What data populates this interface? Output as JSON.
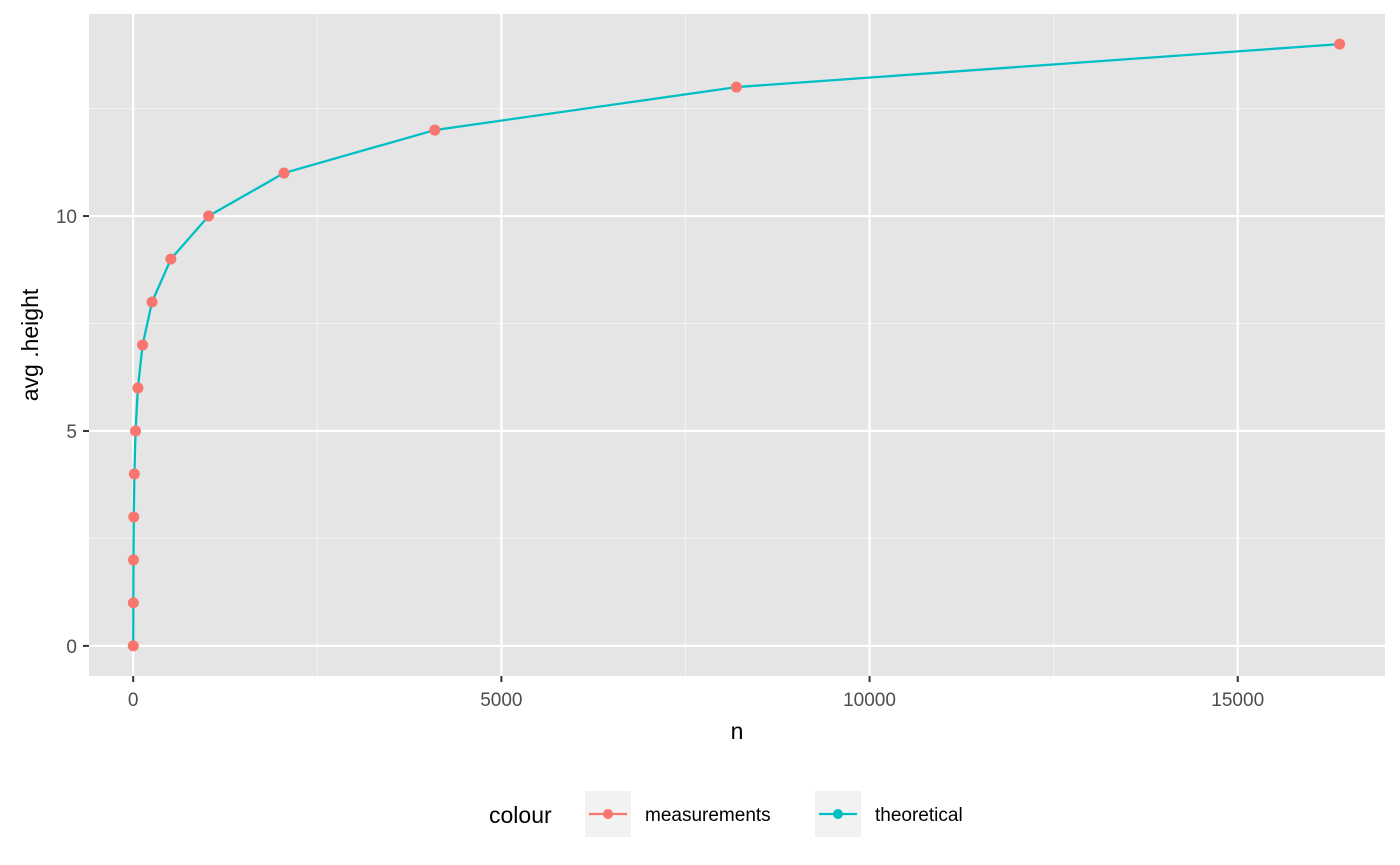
{
  "chart_data": {
    "type": "line",
    "xlabel": "n",
    "ylabel": "avg .height",
    "xlim": [
      -600,
      17000
    ],
    "ylim": [
      -0.7,
      14.7
    ],
    "x_ticks": [
      0,
      5000,
      10000,
      15000
    ],
    "x_tick_labels": [
      "0",
      "5000",
      "10000",
      "15000"
    ],
    "x_minor_ticks": [
      2500,
      7500,
      12500
    ],
    "y_ticks": [
      0,
      5,
      10
    ],
    "y_tick_labels": [
      "0",
      "5",
      "10"
    ],
    "y_minor_ticks": [
      2.5,
      7.5,
      12.5
    ],
    "grid": true,
    "legend": {
      "title": "colour",
      "position": "bottom",
      "entries": [
        {
          "label": "measurements",
          "color": "#F8766D"
        },
        {
          "label": "theoretical",
          "color": "#00BFC4"
        }
      ]
    },
    "series": [
      {
        "name": "measurements",
        "style": "points",
        "color": "#F8766D",
        "x": [
          1,
          2,
          4,
          8,
          16,
          32,
          64,
          128,
          256,
          512,
          1024,
          2048,
          4096,
          8192,
          16384
        ],
        "y": [
          0,
          1,
          2,
          3,
          4,
          5,
          6,
          7,
          8,
          9,
          10,
          11,
          12,
          13,
          14
        ]
      },
      {
        "name": "theoretical",
        "style": "line",
        "color": "#00BFC4",
        "x": [
          1,
          2,
          4,
          8,
          16,
          32,
          64,
          128,
          256,
          512,
          1024,
          2048,
          4096,
          8192,
          16384
        ],
        "y": [
          0,
          1,
          2,
          3,
          4,
          5,
          6,
          7,
          8,
          9,
          10,
          11,
          12,
          13,
          14
        ]
      }
    ]
  },
  "colors": {
    "panel_background": "#E5E5E5",
    "grid_major": "#FFFFFF",
    "grid_minor": "#F2F2F2",
    "legend_key_background": "#F2F2F2"
  }
}
